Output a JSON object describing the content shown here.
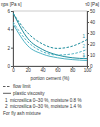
{
  "chart_data": {
    "type": "line",
    "y_label": "ηps [Pa s]",
    "y2_label": "τ0 [Pa]",
    "x_label": "portion cement (%)",
    "x": [
      0,
      20,
      40,
      60,
      80,
      100
    ],
    "xlim": [
      0,
      100
    ],
    "xticks": [
      0,
      20,
      40,
      60,
      80,
      100
    ],
    "ylim": [
      0,
      6
    ],
    "yticks": [
      0,
      2,
      4,
      6
    ],
    "y2lim": [
      0,
      50
    ],
    "y2ticks": [
      0,
      10,
      20,
      30,
      40,
      50
    ],
    "series": [
      {
        "name": "1",
        "color": "#1c8c9c",
        "line_style": "solid",
        "values": [
          5.8,
          3.0,
          1.8,
          1.2,
          0.9,
          0.8
        ]
      },
      {
        "name": "2",
        "color": "#4fb3c4",
        "line_style": "solid",
        "values": [
          4.6,
          2.2,
          1.3,
          0.9,
          0.7,
          0.6
        ]
      },
      {
        "name": "1",
        "color": "#1c8c9c",
        "line_style": "dashed",
        "axis": "y2",
        "values": [
          48,
          30,
          20,
          16,
          18,
          24
        ]
      },
      {
        "name": "2",
        "color": "#4fb3c4",
        "line_style": "dashed",
        "axis": "y2",
        "values": [
          40,
          22,
          13,
          10,
          11,
          15
        ]
      }
    ],
    "legend_entries": [
      {
        "label": "flow limit",
        "line_style": "dashed"
      },
      {
        "label": "plastic viscosity",
        "line_style": "solid"
      }
    ],
    "notes": [
      {
        "label": "1",
        "text": "microsilica 0–30 %, moisture 0.8 %"
      },
      {
        "label": "2",
        "text": "microsilica 0–30 %, moisture 1.4 %"
      }
    ],
    "footnote": "For fly ash mixture"
  }
}
